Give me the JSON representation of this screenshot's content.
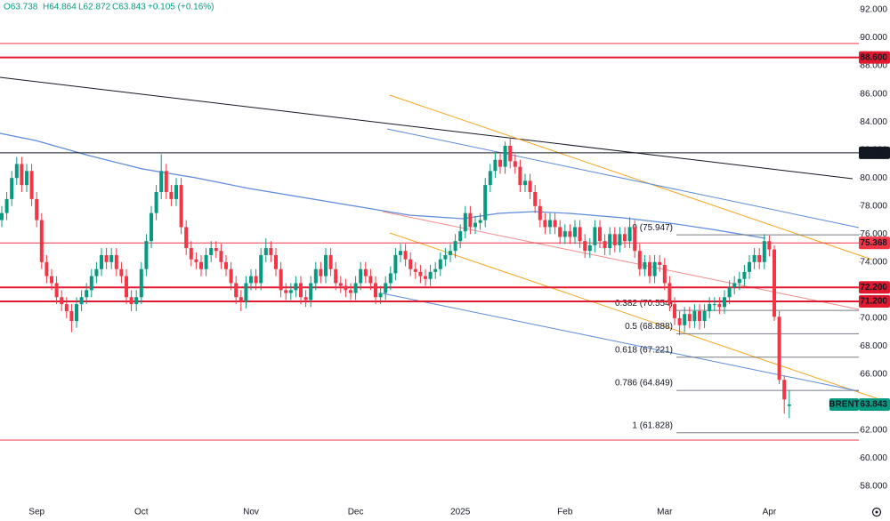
{
  "chart_data": {
    "type": "candlestick",
    "header": {
      "open": "O63.738",
      "high": "H64.864",
      "low": "L62.872",
      "close": "C63.843",
      "change": "+0.105 (+0.16%)"
    },
    "categories": [
      null,
      null,
      null,
      null,
      null,
      null,
      null,
      "Sep",
      null,
      null,
      null,
      null,
      null,
      null,
      null,
      null,
      null,
      null,
      null,
      null,
      null,
      null,
      null,
      null,
      null,
      null,
      null,
      null,
      "Oct",
      null,
      null,
      null,
      null,
      null,
      null,
      null,
      null,
      null,
      null,
      null,
      null,
      null,
      null,
      null,
      null,
      null,
      null,
      null,
      null,
      null,
      "Nov",
      null,
      null,
      null,
      null,
      null,
      null,
      null,
      null,
      null,
      null,
      null,
      null,
      null,
      null,
      null,
      null,
      null,
      null,
      null,
      null,
      "Dec",
      null,
      null,
      null,
      null,
      null,
      null,
      null,
      null,
      null,
      null,
      null,
      null,
      null,
      null,
      null,
      null,
      null,
      null,
      null,
      null,
      "2025",
      null,
      null,
      null,
      null,
      null,
      null,
      null,
      null,
      null,
      null,
      null,
      null,
      null,
      null,
      null,
      null,
      null,
      null,
      null,
      null,
      "Feb",
      null,
      null,
      null,
      null,
      null,
      null,
      null,
      null,
      null,
      null,
      null,
      null,
      null,
      null,
      null,
      null,
      null,
      null,
      null,
      "Mar",
      null,
      null,
      null,
      null,
      null,
      null,
      null,
      null,
      null,
      null,
      null,
      null,
      null,
      null,
      null,
      null,
      null,
      null,
      null,
      null,
      "Apr",
      null,
      null,
      null,
      null
    ],
    "series": [
      {
        "name": "BRENT",
        "up_color": "#089981",
        "down_color": "#f23645",
        "open": [
          77,
          77.5,
          78.5,
          80,
          81,
          79.5,
          80.5,
          78.5,
          77,
          74,
          73,
          72.5,
          71.5,
          71,
          70.5,
          69.8,
          71,
          71.5,
          72,
          73,
          73.5,
          74.5,
          74,
          74.5,
          73.5,
          73,
          71.5,
          71,
          71.5,
          73.5,
          75.5,
          77.5,
          79,
          80.5,
          79,
          78.5,
          79.5,
          76.5,
          75,
          74.2,
          74,
          73.5,
          74.5,
          75,
          74.8,
          74,
          73.5,
          72.5,
          71.5,
          71.2,
          72.5,
          73,
          72.5,
          74.5,
          75,
          74.5,
          73.5,
          72,
          71.8,
          72,
          72.5,
          71.5,
          71.3,
          72.5,
          73.5,
          73,
          74.5,
          73.5,
          72.5,
          72.3,
          72,
          71.8,
          72.5,
          73.5,
          73,
          72.5,
          71.5,
          71.8,
          72.5,
          73.2,
          74.5,
          74.8,
          74.2,
          73.5,
          73.3,
          73,
          72.8,
          73.3,
          73.5,
          74.2,
          74.5,
          74.8,
          75.5,
          76.2,
          77.5,
          76.5,
          76.8,
          77,
          79.5,
          80.5,
          81.3,
          80.8,
          82.3,
          81.2,
          80.8,
          79.5,
          79.8,
          79,
          78,
          77,
          76.5,
          77,
          76.5,
          75.8,
          76.2,
          75.8,
          76.5,
          75.5,
          74.8,
          75.2,
          76.5,
          75.5,
          75,
          76,
          75.2,
          76,
          75.5,
          76.5,
          74.8,
          73.5,
          74,
          73,
          74,
          73.8,
          72.5,
          71,
          70,
          69.5,
          70.3,
          69.8,
          70.5,
          69.8,
          70.5,
          71,
          71,
          70.8,
          71.5,
          72.2,
          72.5,
          72.8,
          73.3,
          74,
          74.5,
          74,
          75.5,
          74.9,
          70.1,
          65.6,
          63.738
        ],
        "high": [
          78,
          79,
          80.5,
          81.5,
          81.5,
          81,
          81,
          79,
          77.5,
          74.5,
          73.5,
          73,
          72,
          71.5,
          71,
          71.5,
          72,
          72.5,
          73.5,
          74,
          75,
          75,
          75,
          75,
          74,
          73.5,
          72,
          72,
          74,
          76,
          78,
          79.5,
          81.7,
          81,
          79.5,
          80,
          80,
          77,
          75.5,
          74.7,
          74.5,
          75,
          75.5,
          75.5,
          75.3,
          74.5,
          74,
          73,
          72,
          73,
          73.5,
          73.5,
          75,
          75.7,
          75.5,
          75,
          74,
          72.5,
          72.5,
          73,
          73,
          72,
          73,
          74,
          74,
          75,
          75,
          74,
          73,
          72.8,
          72.5,
          73,
          74,
          74,
          73.5,
          73,
          72.3,
          73,
          73.7,
          75,
          75.3,
          75.3,
          74.7,
          74,
          73.8,
          73.5,
          73.8,
          74,
          74.7,
          75,
          75.3,
          76,
          76.7,
          78,
          78,
          77.3,
          77.5,
          80,
          81,
          81.8,
          81.8,
          82.6,
          82.8,
          81.7,
          81.3,
          80.3,
          80.3,
          79.5,
          78.5,
          77.5,
          77.5,
          77.5,
          77,
          76.7,
          76.7,
          77,
          77,
          76,
          75.7,
          77,
          77,
          76,
          76.5,
          76.5,
          76.5,
          76.5,
          77.2,
          77,
          75.3,
          74.5,
          74.5,
          74.5,
          74.5,
          74.3,
          73,
          71.5,
          70.5,
          70.8,
          70.8,
          71,
          71,
          71,
          71.5,
          71.5,
          71.5,
          72,
          72.7,
          73,
          73.3,
          73.8,
          74.5,
          75,
          75,
          76,
          75.9,
          75.2,
          70.5,
          65.9,
          64.864
        ],
        "low": [
          76.5,
          77,
          78,
          79.5,
          79,
          79,
          78,
          76.5,
          73.5,
          72.5,
          72,
          71,
          70.5,
          70,
          69,
          69.3,
          70.5,
          71,
          71.5,
          72.5,
          73,
          73.5,
          73.5,
          73,
          72.5,
          71,
          70.5,
          70.5,
          71,
          73,
          75,
          77,
          78.5,
          78.5,
          78,
          78,
          76,
          74.5,
          73.7,
          73.5,
          73,
          73,
          74,
          74.3,
          73.5,
          73,
          72,
          71,
          70.5,
          70.7,
          72,
          72,
          72,
          74,
          74,
          73,
          71.5,
          71.3,
          71.3,
          71.5,
          71,
          70.8,
          70.8,
          72,
          72.5,
          72.5,
          73,
          72,
          71.8,
          71.5,
          71.3,
          71.3,
          72,
          72.5,
          72,
          71,
          71,
          71.3,
          72,
          72.7,
          74,
          73.7,
          73,
          72.8,
          72.5,
          72.3,
          72.3,
          72.8,
          73,
          73.7,
          74,
          74.3,
          75,
          75.7,
          76,
          76,
          76.3,
          76.5,
          79,
          80,
          80.3,
          80.3,
          80.7,
          80.3,
          79,
          79,
          78.5,
          77.5,
          76.5,
          76,
          76,
          76,
          75.3,
          75.3,
          75.3,
          75.3,
          75,
          74.3,
          74.3,
          74.7,
          75,
          74.5,
          74.5,
          74.7,
          74.7,
          75,
          75,
          74.3,
          73,
          73,
          72.5,
          72.5,
          73.3,
          72,
          70.5,
          69.5,
          68.8,
          69,
          69.3,
          69.3,
          69.2,
          69.3,
          70,
          70.5,
          70.3,
          70.3,
          71,
          71.7,
          72,
          72.3,
          72.8,
          73.5,
          73.5,
          73.5,
          74.4,
          69.8,
          65.3,
          63.2,
          62.872
        ],
        "close": [
          77.5,
          78.5,
          80,
          81,
          79.5,
          80.5,
          78.5,
          77,
          74,
          73,
          72.5,
          71.5,
          71,
          70.5,
          69.8,
          71,
          71.5,
          72,
          73,
          73.5,
          74.5,
          74,
          74.5,
          73.5,
          73,
          71.5,
          71,
          71.5,
          73.5,
          75.5,
          77.5,
          79,
          80.5,
          79,
          78.5,
          79.5,
          76.5,
          75,
          74.2,
          74,
          73.5,
          74.5,
          75,
          74.8,
          74,
          73.5,
          72.5,
          71.5,
          71.2,
          72.5,
          73,
          72.5,
          74.5,
          75,
          74.5,
          73.5,
          72,
          71.8,
          72,
          72.5,
          71.5,
          71.3,
          72.5,
          73.5,
          73,
          74.5,
          73.5,
          72.5,
          72.3,
          72,
          71.8,
          72.5,
          73.5,
          73,
          72.5,
          71.5,
          71.8,
          72.5,
          73.2,
          74.5,
          74.8,
          74.2,
          73.5,
          73.3,
          73,
          72.8,
          73.3,
          73.5,
          74.2,
          74.5,
          74.8,
          75.5,
          76.2,
          77.5,
          76.5,
          76.8,
          77,
          79.5,
          80.5,
          81.3,
          80.8,
          82.3,
          81.2,
          80.8,
          79.5,
          79.8,
          79,
          78,
          77,
          76.5,
          77,
          76.5,
          75.8,
          76.2,
          75.8,
          76.5,
          75.5,
          74.8,
          75.2,
          76.5,
          75.5,
          75,
          76,
          75.2,
          76,
          75.5,
          76.5,
          74.8,
          73.5,
          74,
          73,
          74,
          73.8,
          72.5,
          71,
          70,
          69.5,
          70.3,
          69.8,
          70.5,
          69.8,
          70.5,
          71,
          71,
          70.8,
          71.5,
          72.2,
          72.5,
          72.8,
          73.3,
          74,
          74.5,
          74,
          75.5,
          74.9,
          70.1,
          65.6,
          64.2,
          63.843
        ]
      }
    ],
    "last_price_color": "#089981",
    "ylim": [
      56.8,
      92.7
    ],
    "yticks": [
      {
        "value": 58,
        "label": "58.000"
      },
      {
        "value": 60,
        "label": "60.000"
      },
      {
        "value": 62,
        "label": "62.000"
      },
      {
        "value": 64,
        "label": "64.000"
      },
      {
        "value": 66,
        "label": "66.000"
      },
      {
        "value": 68,
        "label": "68.000"
      },
      {
        "value": 70,
        "label": "70.000"
      },
      {
        "value": 72,
        "label": "72.000"
      },
      {
        "value": 74,
        "label": "74.000"
      },
      {
        "value": 76,
        "label": "76.000"
      },
      {
        "value": 78,
        "label": "78.000"
      },
      {
        "value": 80,
        "label": "80.000"
      },
      {
        "value": 82,
        "label": "82.000"
      },
      {
        "value": 84,
        "label": "84.000"
      },
      {
        "value": 86,
        "label": "86.000"
      },
      {
        "value": 88,
        "label": "88.000"
      },
      {
        "value": 90,
        "label": "90.000"
      },
      {
        "value": 92,
        "label": "92.000"
      }
    ],
    "price_lines": [
      {
        "value": 89.6,
        "color": "#f23645",
        "line_width": 1
      },
      {
        "value": 88.6,
        "label": "88.600",
        "color": "#e0192f",
        "line_width": 2
      },
      {
        "value": 81.8,
        "label": "81.800",
        "color": "#131722",
        "line_width": 1
      },
      {
        "value": 75.368,
        "label": "75.368",
        "color": "#f23645",
        "line_width": 1
      },
      {
        "value": 72.2,
        "label": "72.200",
        "color": "#e0192f",
        "line_width": 2
      },
      {
        "value": 71.2,
        "label": "71.200",
        "color": "#e0192f",
        "line_width": 2
      },
      {
        "value": 61.3,
        "color": "#f23645",
        "line_width": 1
      }
    ],
    "fib_levels": [
      {
        "value": 75.947,
        "label": "0 (75.947)"
      },
      {
        "value": 70.554,
        "label": "0.382 (70.554)"
      },
      {
        "value": 68.888,
        "label": "0.5 (68.888)"
      },
      {
        "value": 67.221,
        "label": "0.618 (67.221)"
      },
      {
        "value": 64.849,
        "label": "0.786 (64.849)"
      },
      {
        "value": 61.828,
        "label": "1 (61.828)"
      }
    ],
    "fib_color": "#787b86"
  }
}
